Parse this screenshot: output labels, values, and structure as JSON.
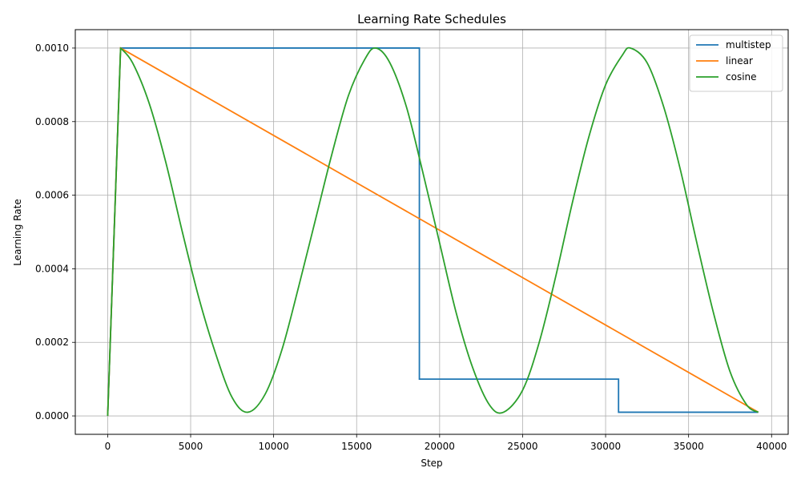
{
  "chart_data": {
    "type": "line",
    "title": "Learning Rate Schedules",
    "xlabel": "Step",
    "ylabel": "Learning Rate",
    "xlim": [
      -1950,
      41000
    ],
    "ylim": [
      -5e-05,
      0.00105
    ],
    "xticks": [
      0,
      5000,
      10000,
      15000,
      20000,
      25000,
      30000,
      35000,
      40000
    ],
    "xtick_labels": [
      "0",
      "5000",
      "10000",
      "15000",
      "20000",
      "25000",
      "30000",
      "35000",
      "40000"
    ],
    "yticks": [
      0.0,
      0.0002,
      0.0004,
      0.0006,
      0.0008,
      0.001
    ],
    "ytick_labels": [
      "0.0000",
      "0.0002",
      "0.0004",
      "0.0006",
      "0.0008",
      "0.0010"
    ],
    "grid": true,
    "legend_position": "upper right",
    "series": [
      {
        "name": "multistep",
        "color": "#1f77b4",
        "x": [
          0,
          780,
          18780,
          18780,
          30780,
          30780,
          39200
        ],
        "y": [
          0.0,
          0.001,
          0.001,
          0.0001,
          0.0001,
          1e-05,
          1e-05
        ]
      },
      {
        "name": "linear",
        "color": "#ff7f0e",
        "x": [
          0,
          780,
          39200
        ],
        "y": [
          0.0,
          0.001,
          1e-05
        ]
      },
      {
        "name": "cosine",
        "color": "#2ca02c",
        "x": [
          0,
          780,
          1500,
          2500,
          3500,
          4500,
          5500,
          6500,
          7500,
          8450,
          9500,
          10500,
          11500,
          12500,
          13500,
          14500,
          15500,
          16150,
          17000,
          18000,
          19000,
          20000,
          21000,
          22000,
          23000,
          23850,
          25000,
          26000,
          27000,
          28000,
          29000,
          30000,
          31000,
          31500,
          32500,
          33500,
          34500,
          35500,
          36500,
          37500,
          38500,
          39200
        ],
        "y": [
          0.0,
          0.001,
          0.00096,
          0.00085,
          0.00069,
          0.0005,
          0.00032,
          0.00017,
          5e-05,
          1e-05,
          6e-05,
          0.00018,
          0.00035,
          0.00053,
          0.00071,
          0.00087,
          0.00097,
          0.001,
          0.00096,
          0.00084,
          0.00066,
          0.00047,
          0.00028,
          0.00013,
          3e-05,
          1e-05,
          7e-05,
          0.0002,
          0.00038,
          0.00058,
          0.00076,
          0.0009,
          0.00098,
          0.001,
          0.00096,
          0.00084,
          0.00067,
          0.00047,
          0.00028,
          0.00012,
          3e-05,
          1e-05
        ]
      }
    ]
  }
}
